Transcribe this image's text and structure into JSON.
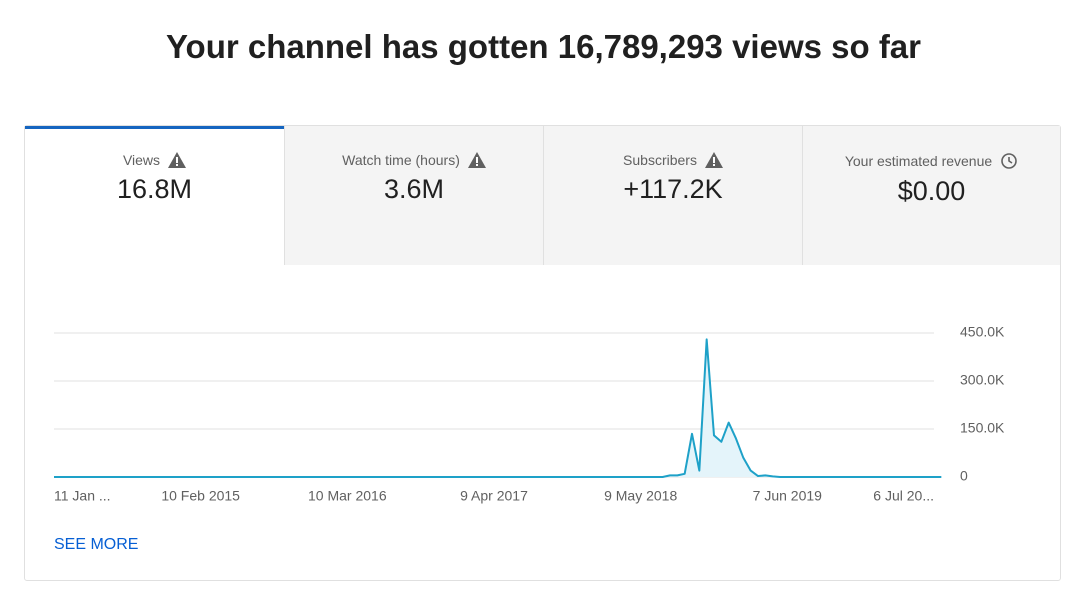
{
  "header": {
    "title": "Your channel has gotten 16,789,293 views so far"
  },
  "tabs": [
    {
      "label": "Views",
      "value": "16.8M"
    },
    {
      "label": "Watch time (hours)",
      "value": "3.6M"
    },
    {
      "label": "Subscribers",
      "value": "+117.2K"
    },
    {
      "label": "Your estimated revenue",
      "value": "$0.00"
    }
  ],
  "chart_data": {
    "type": "line",
    "color": "#1ea1c8",
    "area_color": "#e4f4fa",
    "grid": true,
    "values": [
      0,
      0,
      0,
      0,
      0,
      0,
      0,
      0,
      0,
      0,
      0,
      0,
      0,
      0,
      0,
      0,
      0,
      0,
      0,
      0,
      0,
      0,
      0,
      0,
      0,
      0,
      0,
      0,
      0,
      0,
      0,
      0,
      0,
      0,
      0,
      0,
      0,
      0,
      0,
      0,
      0,
      0,
      0,
      0,
      0,
      0,
      0,
      0,
      0,
      0,
      0,
      0,
      0,
      0,
      0,
      0,
      0,
      0,
      0,
      0,
      0,
      0,
      0,
      0,
      0,
      0,
      0,
      0,
      0,
      0,
      0,
      0,
      0,
      0,
      0,
      0,
      0,
      0,
      0,
      0,
      0,
      0,
      0,
      0,
      5000,
      5000,
      10000,
      135000,
      20000,
      430000,
      130000,
      110000,
      170000,
      120000,
      60000,
      20000,
      3000,
      5000,
      2000,
      0,
      0,
      0,
      0,
      0,
      0,
      0,
      0,
      0,
      0,
      0,
      0,
      0,
      0,
      0,
      0,
      0,
      0,
      0,
      0,
      0,
      0,
      0
    ],
    "xlim": [
      0,
      120
    ],
    "xticks": [
      {
        "value": 0,
        "label": "11 Jan ..."
      },
      {
        "value": 20,
        "label": "10 Feb 2015"
      },
      {
        "value": 40,
        "label": "10 Mar 2016"
      },
      {
        "value": 60,
        "label": "9 Apr 2017"
      },
      {
        "value": 80,
        "label": "9 May 2018"
      },
      {
        "value": 100,
        "label": "7 Jun 2019"
      },
      {
        "value": 120,
        "label": "6 Jul 20..."
      }
    ],
    "ylim": [
      0,
      450000
    ],
    "yticks": [
      0,
      {
        "value": 150000,
        "label": "150.0K"
      },
      {
        "value": 300000,
        "label": "300.0K"
      },
      {
        "value": 450000,
        "label": "450.0K"
      }
    ]
  },
  "see_more": "SEE MORE"
}
